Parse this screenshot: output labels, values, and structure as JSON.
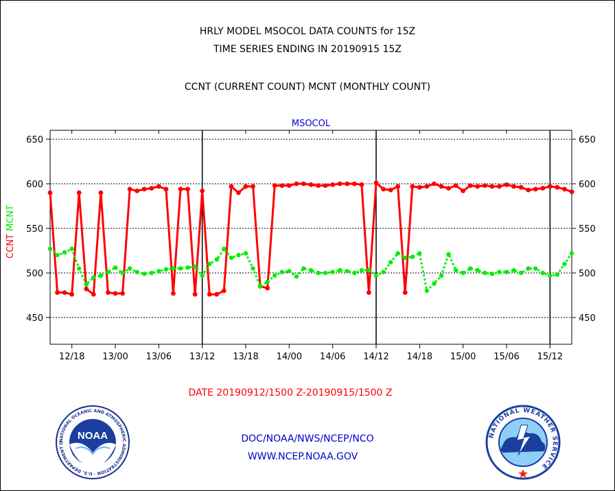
{
  "header": {
    "line1": "HRLY MODEL MSOCOL DATA COUNTS for 15Z",
    "line2": "TIME SERIES ENDING IN 20190915 15Z",
    "line3": "CCNT (CURRENT COUNT) MCNT (MONTHLY COUNT)"
  },
  "footer": {
    "date_range": "DATE 20190912/1500 Z-20190915/1500 Z",
    "agency": "DOC/NOAA/NWS/NCEP/NCO",
    "website": "WWW.NCEP.NOAA.GOV"
  },
  "logos": {
    "noaa": {
      "name": "noaa-logo",
      "text": "NOAA",
      "ring_text": "NATIONAL OCEANIC AND ATMOSPHERIC ADMINISTRATION · U.S. DEPARTMENT OF COMMERCE"
    },
    "nws": {
      "name": "nws-logo",
      "ring_text": "NATIONAL WEATHER SERVICE"
    }
  },
  "chart_data": {
    "type": "line",
    "title": "MSOCOL",
    "ylabel_left": [
      "CCNT",
      "MCNT"
    ],
    "ylim": [
      420,
      660
    ],
    "yticks": [
      450,
      500,
      550,
      600,
      650
    ],
    "grid": true,
    "x_unit": "hours",
    "x_start": "12/15",
    "xlim": [
      0,
      72
    ],
    "xtick_labels": [
      "12/18",
      "13/00",
      "13/06",
      "13/12",
      "13/18",
      "14/00",
      "14/06",
      "14/12",
      "14/18",
      "15/00",
      "15/06",
      "15/12"
    ],
    "xtick_positions": [
      3,
      9,
      15,
      21,
      27,
      33,
      39,
      45,
      51,
      57,
      63,
      69
    ],
    "day_boundaries": [
      21,
      45,
      69
    ],
    "colors": {
      "ccnt": "#ff0000",
      "mcnt": "#00ee00",
      "title": "#0000cc"
    },
    "series": [
      {
        "name": "CCNT",
        "x": [
          0,
          1,
          2,
          3,
          4,
          5,
          6,
          7,
          8,
          9,
          10,
          11,
          12,
          13,
          14,
          15,
          16,
          17,
          18,
          19,
          20,
          21,
          22,
          23,
          24,
          25,
          26,
          27,
          28,
          29,
          30,
          31,
          32,
          33,
          34,
          35,
          36,
          37,
          38,
          39,
          40,
          41,
          42,
          43,
          44,
          45,
          46,
          47,
          48,
          49,
          50,
          51,
          52,
          53,
          54,
          55,
          56,
          57,
          58,
          59,
          60,
          61,
          62,
          63,
          64,
          65,
          66,
          67,
          68,
          69,
          70,
          71,
          72
        ],
        "values": [
          590,
          478,
          478,
          476,
          590,
          482,
          476,
          590,
          478,
          477,
          477,
          594,
          592,
          594,
          595,
          597,
          594,
          477,
          594,
          594,
          476,
          592,
          476,
          476,
          480,
          597,
          590,
          597,
          597,
          485,
          483,
          598,
          598,
          598,
          600,
          600,
          599,
          598,
          598,
          599,
          600,
          600,
          600,
          599,
          478,
          601,
          594,
          593,
          597,
          478,
          597,
          596,
          597,
          600,
          597,
          595,
          598,
          592,
          598,
          597,
          598,
          597,
          597,
          599,
          597,
          596,
          593,
          594,
          595,
          597,
          596,
          594,
          591
        ]
      },
      {
        "name": "MCNT",
        "x": [
          0,
          1,
          2,
          3,
          4,
          5,
          6,
          7,
          8,
          9,
          10,
          11,
          12,
          13,
          14,
          15,
          16,
          17,
          18,
          19,
          20,
          21,
          22,
          23,
          24,
          25,
          26,
          27,
          28,
          29,
          30,
          31,
          32,
          33,
          34,
          35,
          36,
          37,
          38,
          39,
          40,
          41,
          42,
          43,
          44,
          45,
          46,
          47,
          48,
          49,
          50,
          51,
          52,
          53,
          54,
          55,
          56,
          57,
          58,
          59,
          60,
          61,
          62,
          63,
          64,
          65,
          66,
          67,
          68,
          69,
          70,
          71,
          72
        ],
        "values": [
          527,
          520,
          523,
          527,
          505,
          487,
          495,
          497,
          501,
          506,
          500,
          505,
          501,
          499,
          500,
          502,
          504,
          505,
          505,
          506,
          507,
          497,
          510,
          515,
          527,
          517,
          520,
          522,
          505,
          485,
          490,
          497,
          501,
          502,
          496,
          505,
          503,
          500,
          500,
          501,
          503,
          502,
          500,
          503,
          503,
          497,
          501,
          512,
          522,
          517,
          518,
          522,
          480,
          488,
          497,
          521,
          503,
          500,
          505,
          503,
          500,
          499,
          501,
          501,
          503,
          500,
          505,
          505,
          500,
          497,
          498,
          510,
          522
        ]
      }
    ]
  }
}
